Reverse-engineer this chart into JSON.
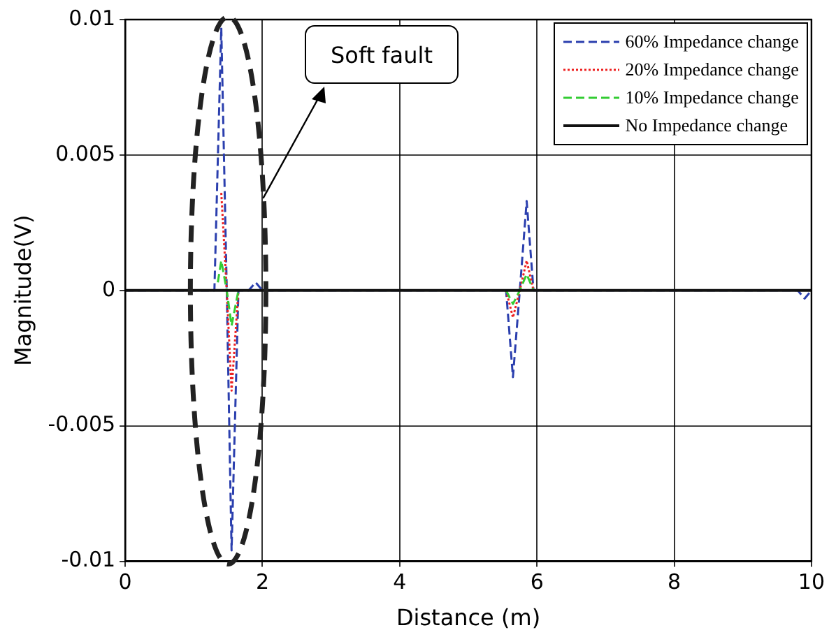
{
  "chart_data": {
    "type": "line",
    "xlabel": "Distance (m)",
    "ylabel": "Magnitude(V)",
    "xlim": [
      0,
      10
    ],
    "xticks": [
      0,
      2,
      4,
      6,
      8,
      10
    ],
    "ylim": [
      -0.01,
      0.01
    ],
    "yticks": [
      -0.01,
      -0.005,
      0,
      0.005,
      0.01
    ],
    "grid": true,
    "legend": "top right",
    "marker": "none",
    "annotations": [
      "Soft fault"
    ],
    "x": [
      0,
      1.3,
      1.4,
      1.48,
      1.55,
      1.65,
      1.8,
      1.9,
      2.0,
      5.55,
      5.65,
      5.75,
      5.85,
      5.95,
      9.8,
      9.9,
      10
    ],
    "series": [
      {
        "name": "60% Impedance change",
        "color": "#2b3fae",
        "line_style": "dashed",
        "values": [
          0,
          0,
          0.0097,
          0,
          -0.0096,
          0,
          0,
          0.0003,
          0,
          0,
          -0.0032,
          0,
          0.0033,
          0,
          0,
          -0.0003,
          0
        ]
      },
      {
        "name": "20% Impedance change",
        "color": "#ee2222",
        "line_style": "dotted",
        "x": [
          1.4,
          1.48,
          1.55,
          1.65,
          3,
          5.55,
          5.65,
          5.75,
          5.85,
          5.95
        ],
        "values": [
          0.0036,
          0,
          -0.0037,
          0,
          null,
          0,
          -0.001,
          0,
          0.0011,
          0
        ]
      },
      {
        "name": "10% Impedance change",
        "color": "#33cc33",
        "line_style": "dashed",
        "x": [
          1.35,
          1.4,
          1.48,
          1.55,
          1.65,
          3,
          5.55,
          5.65,
          5.75,
          5.85,
          5.95
        ],
        "values": [
          0.0003,
          0.0011,
          0,
          -0.0013,
          0,
          null,
          0,
          -0.0005,
          0,
          0.0006,
          0
        ]
      },
      {
        "name": "No Impedance change",
        "color": "#111111",
        "line_style": "solid",
        "values": [
          0,
          0,
          0,
          0,
          0,
          0,
          0,
          0,
          0,
          0,
          0,
          0,
          0,
          0,
          0,
          0,
          0
        ]
      }
    ]
  }
}
